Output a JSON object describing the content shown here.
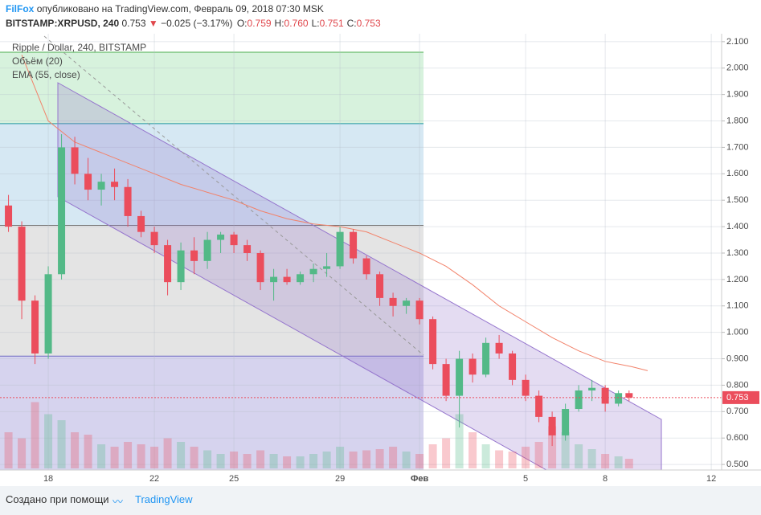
{
  "header": {
    "author": "FilFox",
    "published": "опубликовано на TradingView.com, Февраль 09, 2018 07:30 MSK",
    "symbol": "BITSTAMP:XRPUSD, 240",
    "last": "0.753",
    "change": "−0.025 (−3.17%)",
    "ohlc": [
      {
        "key": "O:",
        "value": "0.759"
      },
      {
        "key": "H:",
        "value": "0.760"
      },
      {
        "key": "L:",
        "value": "0.751"
      },
      {
        "key": "C:",
        "value": "0.753"
      }
    ]
  },
  "chart_data": {
    "type": "candlestick",
    "title": "Ripple / Dollar, 240, BITSTAMP",
    "up_color": "#53b987",
    "down_color": "#eb4d5c",
    "x": [
      16.5,
      17,
      17.5,
      18,
      18.5,
      19,
      19.5,
      20,
      20.5,
      21,
      21.5,
      22,
      22.5,
      23,
      23.5,
      24,
      24.5,
      25,
      25.5,
      26,
      26.5,
      27,
      27.5,
      28,
      28.5,
      29,
      29.5,
      30,
      30.5,
      31,
      31.5,
      32,
      32.5,
      33,
      33.5,
      34,
      34.5,
      35,
      35.5,
      36,
      36.5,
      37,
      37.5,
      38,
      38.5,
      39,
      39.5,
      39.9
    ],
    "ohlc": [
      [
        1.48,
        1.52,
        1.38,
        1.4
      ],
      [
        1.4,
        1.42,
        1.05,
        1.12
      ],
      [
        1.12,
        1.14,
        0.88,
        0.92
      ],
      [
        0.92,
        1.25,
        0.9,
        1.22
      ],
      [
        1.22,
        1.75,
        1.2,
        1.7
      ],
      [
        1.7,
        1.74,
        1.56,
        1.6
      ],
      [
        1.6,
        1.66,
        1.5,
        1.54
      ],
      [
        1.54,
        1.6,
        1.48,
        1.57
      ],
      [
        1.57,
        1.62,
        1.5,
        1.55
      ],
      [
        1.55,
        1.58,
        1.4,
        1.44
      ],
      [
        1.44,
        1.46,
        1.36,
        1.38
      ],
      [
        1.38,
        1.4,
        1.3,
        1.33
      ],
      [
        1.33,
        1.35,
        1.14,
        1.19
      ],
      [
        1.19,
        1.34,
        1.16,
        1.31
      ],
      [
        1.31,
        1.36,
        1.22,
        1.27
      ],
      [
        1.27,
        1.38,
        1.24,
        1.35
      ],
      [
        1.35,
        1.38,
        1.3,
        1.37
      ],
      [
        1.37,
        1.38,
        1.3,
        1.33
      ],
      [
        1.33,
        1.35,
        1.27,
        1.3
      ],
      [
        1.3,
        1.31,
        1.16,
        1.19
      ],
      [
        1.19,
        1.24,
        1.12,
        1.21
      ],
      [
        1.21,
        1.24,
        1.18,
        1.19
      ],
      [
        1.19,
        1.23,
        1.18,
        1.22
      ],
      [
        1.22,
        1.26,
        1.19,
        1.24
      ],
      [
        1.24,
        1.3,
        1.21,
        1.25
      ],
      [
        1.25,
        1.4,
        1.24,
        1.38
      ],
      [
        1.38,
        1.39,
        1.26,
        1.28
      ],
      [
        1.28,
        1.29,
        1.2,
        1.22
      ],
      [
        1.22,
        1.23,
        1.1,
        1.13
      ],
      [
        1.13,
        1.15,
        1.06,
        1.1
      ],
      [
        1.1,
        1.13,
        1.07,
        1.12
      ],
      [
        1.12,
        1.13,
        1.03,
        1.05
      ],
      [
        1.05,
        1.06,
        0.86,
        0.88
      ],
      [
        0.88,
        0.9,
        0.74,
        0.76
      ],
      [
        0.76,
        0.93,
        0.64,
        0.9
      ],
      [
        0.9,
        0.92,
        0.81,
        0.84
      ],
      [
        0.84,
        0.98,
        0.83,
        0.96
      ],
      [
        0.96,
        0.99,
        0.9,
        0.92
      ],
      [
        0.92,
        0.93,
        0.8,
        0.82
      ],
      [
        0.82,
        0.84,
        0.74,
        0.76
      ],
      [
        0.76,
        0.78,
        0.66,
        0.68
      ],
      [
        0.68,
        0.7,
        0.57,
        0.61
      ],
      [
        0.61,
        0.73,
        0.59,
        0.71
      ],
      [
        0.71,
        0.8,
        0.7,
        0.78
      ],
      [
        0.78,
        0.82,
        0.74,
        0.79
      ],
      [
        0.79,
        0.8,
        0.7,
        0.73
      ],
      [
        0.73,
        0.78,
        0.72,
        0.77
      ],
      [
        0.77,
        0.78,
        0.74,
        0.753
      ]
    ],
    "volume": {
      "name": "Объём (20)",
      "values": [
        30,
        25,
        55,
        45,
        40,
        30,
        28,
        20,
        18,
        22,
        20,
        18,
        25,
        22,
        18,
        15,
        12,
        14,
        12,
        15,
        12,
        10,
        10,
        12,
        14,
        18,
        14,
        15,
        16,
        18,
        14,
        12,
        20,
        25,
        45,
        30,
        20,
        15,
        14,
        18,
        22,
        35,
        30,
        20,
        16,
        12,
        10,
        8
      ]
    },
    "ema": {
      "name": "EMA (55, close)",
      "color": "#f2826a",
      "x": [
        17,
        18,
        19,
        20,
        21,
        22,
        23,
        24,
        25,
        26,
        27,
        28,
        29,
        30,
        31,
        32,
        33,
        34,
        35,
        36,
        37,
        38,
        39,
        40,
        40.6
      ],
      "values": [
        2.05,
        1.8,
        1.72,
        1.68,
        1.64,
        1.6,
        1.56,
        1.53,
        1.5,
        1.46,
        1.43,
        1.41,
        1.4,
        1.38,
        1.34,
        1.3,
        1.25,
        1.18,
        1.1,
        1.04,
        0.98,
        0.93,
        0.89,
        0.87,
        0.855
      ]
    },
    "last_price": 0.753,
    "fib_levels": [
      2.06,
      1.79,
      1.405,
      0.91
    ],
    "xlim": [
      16.18,
      43.39
    ],
    "xticks": [
      18,
      22,
      25,
      29,
      {
        "value": 32,
        "label": "Фев"
      },
      {
        "value": 36,
        "label": "5"
      },
      {
        "value": 39,
        "label": "8"
      },
      {
        "value": 43,
        "label": "12"
      }
    ],
    "ylim": [
      0.479,
      2.13
    ],
    "yticks": [
      {
        "value": 2.1,
        "label": "2.100"
      },
      {
        "value": 2.0,
        "label": "2.000"
      },
      {
        "value": 1.9,
        "label": "1.900"
      },
      {
        "value": 1.8,
        "label": "1.800"
      },
      {
        "value": 1.7,
        "label": "1.700"
      },
      {
        "value": 1.6,
        "label": "1.600"
      },
      {
        "value": 1.5,
        "label": "1.500"
      },
      {
        "value": 1.4,
        "label": "1.400"
      },
      {
        "value": 1.3,
        "label": "1.300"
      },
      {
        "value": 1.2,
        "label": "1.200"
      },
      {
        "value": 1.1,
        "label": "1.100"
      },
      {
        "value": 1.0,
        "label": "1.000"
      },
      {
        "value": 0.9,
        "label": "0.900"
      },
      {
        "value": 0.8,
        "label": "0.800"
      },
      {
        "value": 0.7,
        "label": "0.700"
      },
      {
        "value": 0.6,
        "label": "0.600"
      },
      {
        "value": 0.5,
        "label": "0.500"
      }
    ],
    "grid": true
  },
  "footer": {
    "text": "Создано при помощи",
    "brand": "TradingView"
  }
}
